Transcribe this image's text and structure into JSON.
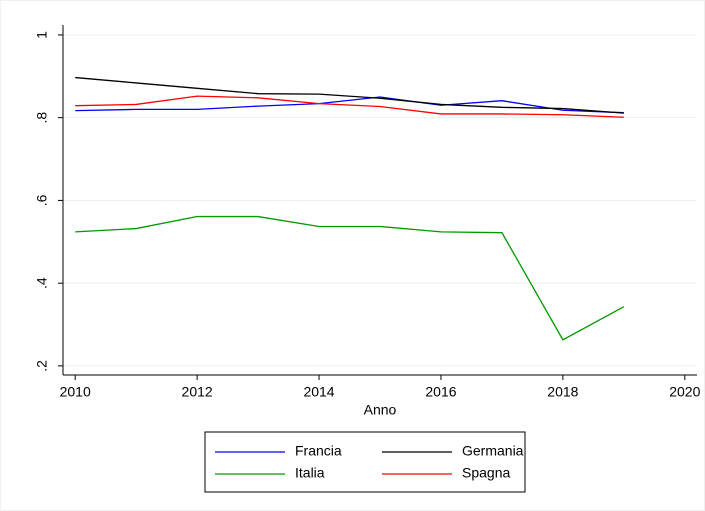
{
  "chart_data": {
    "type": "line",
    "x": [
      2010,
      2011,
      2012,
      2013,
      2014,
      2015,
      2016,
      2017,
      2018,
      2019
    ],
    "series": [
      {
        "name": "Francia",
        "color": "#0000ff",
        "values": [
          0.817,
          0.82,
          0.82,
          0.828,
          0.834,
          0.85,
          0.83,
          0.841,
          0.818,
          0.812
        ]
      },
      {
        "name": "Germania",
        "color": "#000000",
        "values": [
          0.897,
          0.884,
          0.871,
          0.858,
          0.857,
          0.847,
          0.832,
          0.825,
          0.822,
          0.811
        ]
      },
      {
        "name": "Italia",
        "color": "#009900",
        "values": [
          0.524,
          0.532,
          0.561,
          0.561,
          0.537,
          0.537,
          0.524,
          0.522,
          0.263,
          0.343
        ]
      },
      {
        "name": "Spagna",
        "color": "#ff0000",
        "values": [
          0.829,
          0.832,
          0.852,
          0.848,
          0.834,
          0.827,
          0.809,
          0.809,
          0.807,
          0.801
        ]
      }
    ],
    "x_label": "Anno",
    "xlim": [
      2009.8,
      2020.2
    ],
    "xticks": [
      2010,
      2012,
      2014,
      2016,
      2018,
      2020
    ],
    "ylim": [
      0.178,
      1.024
    ],
    "yticks": [
      {
        "value": 0.2,
        "label": ".2"
      },
      {
        "value": 0.4,
        "label": ".4"
      },
      {
        "value": 0.6,
        "label": ".6"
      },
      {
        "value": 0.8,
        "label": ".8"
      },
      1
    ],
    "grid": true,
    "legend": "bottom"
  }
}
